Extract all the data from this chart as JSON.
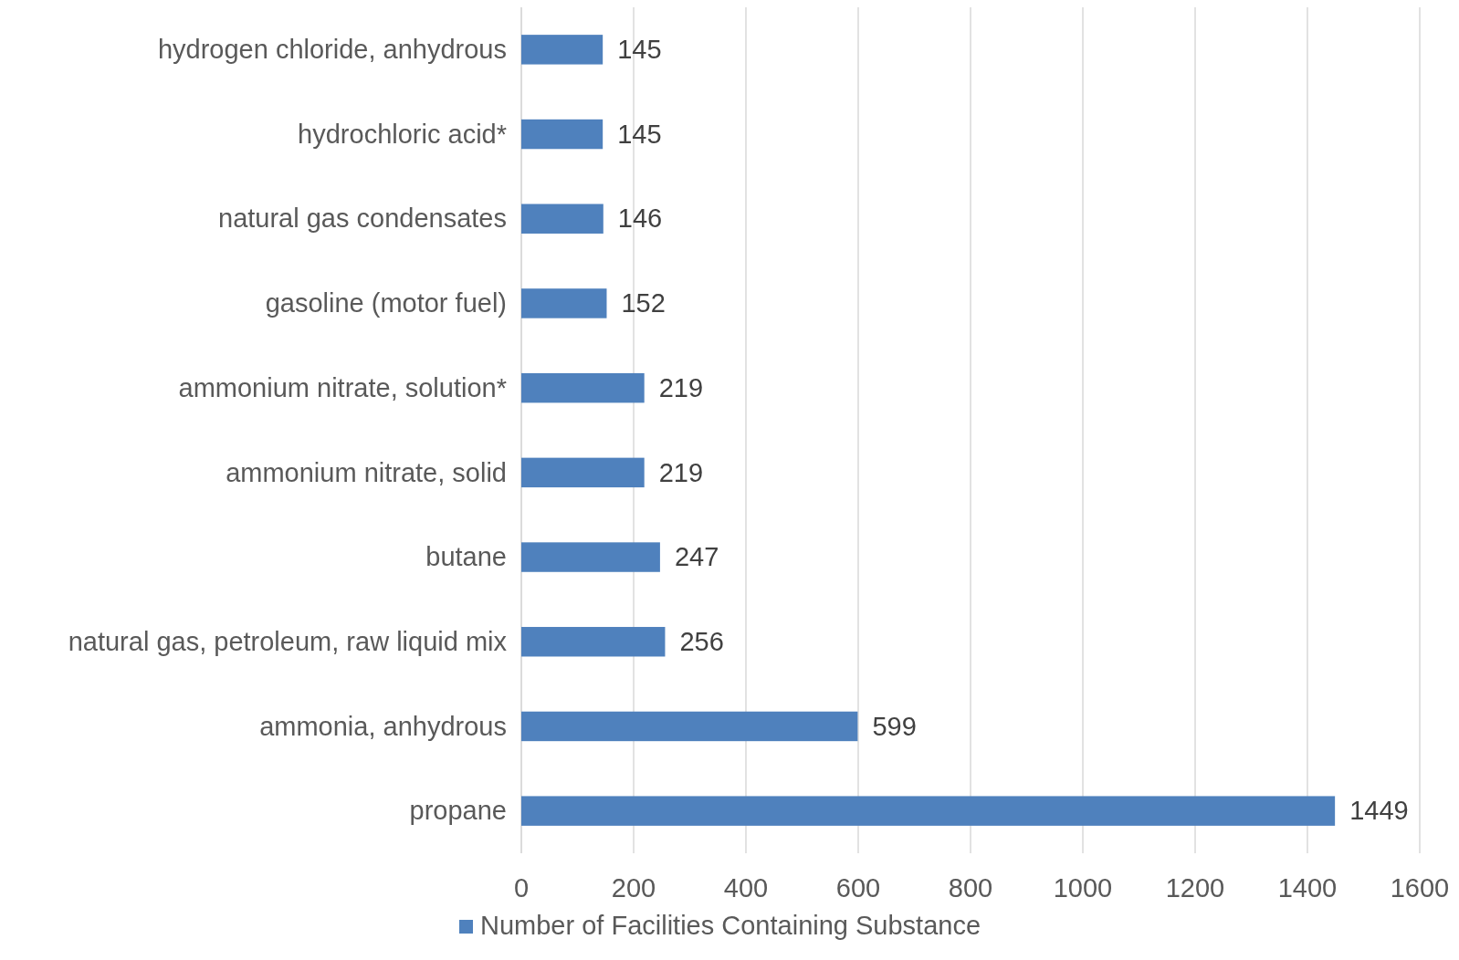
{
  "chart_data": {
    "type": "bar",
    "orientation": "horizontal",
    "categories": [
      "hydrogen chloride, anhydrous",
      "hydrochloric acid*",
      "natural gas condensates",
      "gasoline (motor fuel)",
      "ammonium nitrate, solution*",
      "ammonium nitrate, solid",
      "butane",
      "natural gas, petroleum, raw liquid mix",
      "ammonia, anhydrous",
      "propane"
    ],
    "series": [
      {
        "name": "Number of Facilities Containing Substance",
        "color": "#4f81bd",
        "values": [
          145,
          145,
          146,
          152,
          219,
          219,
          247,
          256,
          599,
          1449
        ]
      }
    ],
    "xlim": [
      0,
      1600
    ],
    "xticks": [
      0,
      200,
      400,
      600,
      800,
      1000,
      1200,
      1400,
      1600
    ],
    "grid": "x",
    "data_labels": true,
    "legend": "bottom"
  }
}
